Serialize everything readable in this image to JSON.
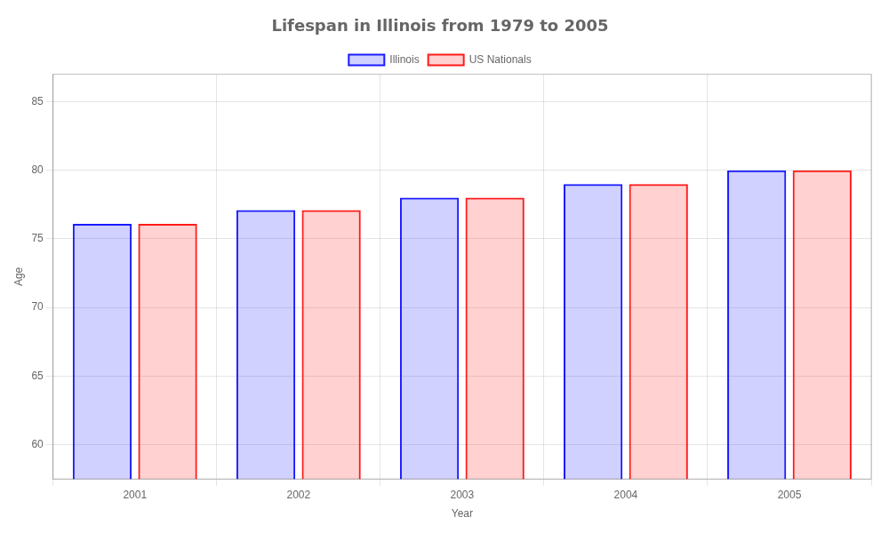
{
  "chart_data": {
    "type": "bar",
    "title": "Lifespan in Illinois from 1979 to 2005",
    "x_label": "Year",
    "y_label": "Age",
    "categories": [
      "2001",
      "2002",
      "2003",
      "2004",
      "2005"
    ],
    "series": [
      {
        "name": "Illinois",
        "color": "#1a1aff",
        "values": [
          76.1,
          77.1,
          78.0,
          79.0,
          80.0
        ]
      },
      {
        "name": "US Nationals",
        "color": "#ff1a1a",
        "values": [
          76.1,
          77.1,
          78.0,
          79.0,
          80.0
        ]
      }
    ],
    "ylim": [
      57.5,
      87
    ],
    "yticks": [
      60,
      65,
      70,
      75,
      80,
      85
    ],
    "grid": true,
    "legend": "top"
  }
}
